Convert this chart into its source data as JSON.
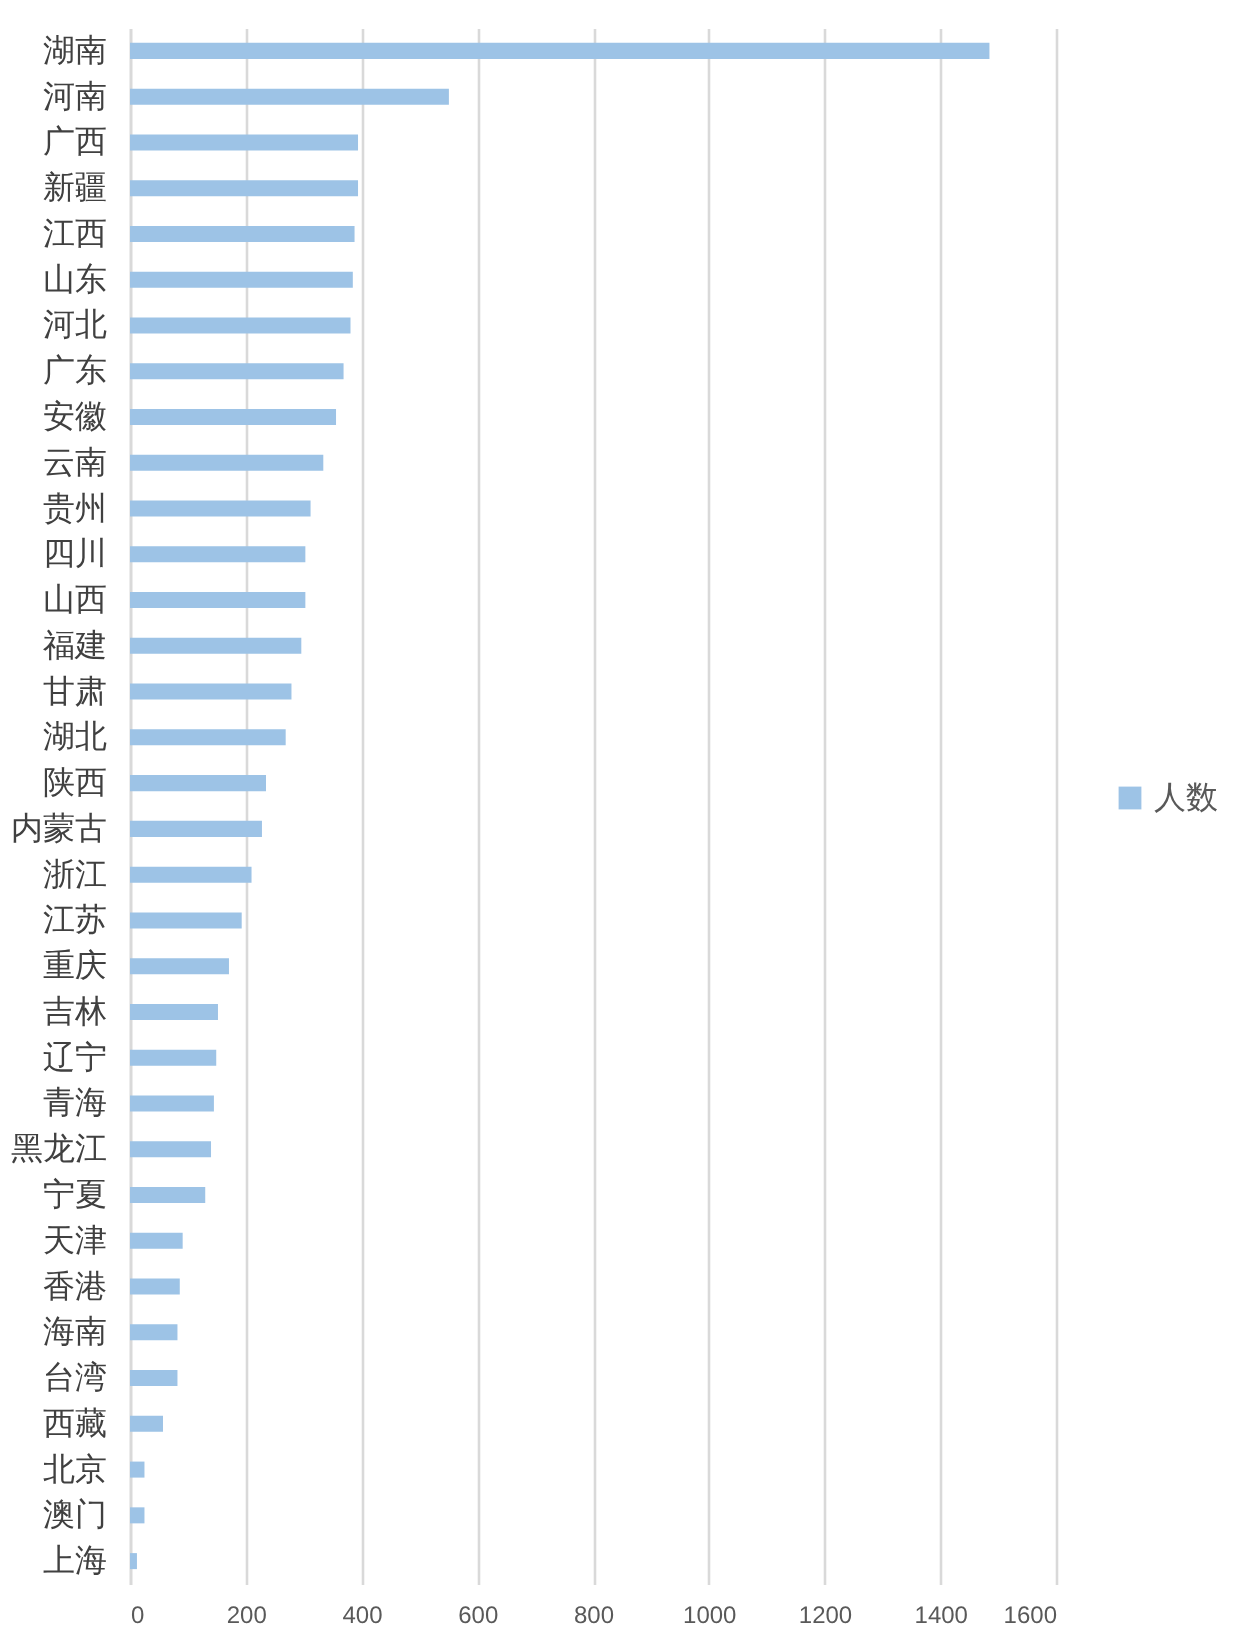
{
  "chart_data": {
    "type": "bar",
    "orientation": "horizontal",
    "categories": [
      "湖南",
      "河南",
      "广西",
      "新疆",
      "江西",
      "山东",
      "河北",
      "广东",
      "安徽",
      "云南",
      "贵州",
      "四川",
      "山西",
      "福建",
      "甘肃",
      "湖北",
      "陕西",
      "内蒙古",
      "浙江",
      "江苏",
      "重庆",
      "吉林",
      "辽宁",
      "青海",
      "黑龙江",
      "宁夏",
      "天津",
      "香港",
      "海南",
      "台湾",
      "西藏",
      "北京",
      "澳门",
      "上海"
    ],
    "series": [
      {
        "name": "人数",
        "color": "#9dc3e6",
        "values": [
          1485,
          551,
          394,
          394,
          388,
          385,
          381,
          369,
          356,
          334,
          312,
          303,
          303,
          296,
          279,
          269,
          235,
          228,
          210,
          193,
          171,
          152,
          149,
          145,
          140,
          130,
          91,
          86,
          82,
          82,
          57,
          25,
          25,
          12
        ]
      }
    ],
    "xlim": [
      0,
      1600
    ],
    "xticks": [
      0,
      200,
      400,
      600,
      800,
      1000,
      1200,
      1400,
      1600
    ],
    "grid": "x",
    "legend": "right"
  }
}
